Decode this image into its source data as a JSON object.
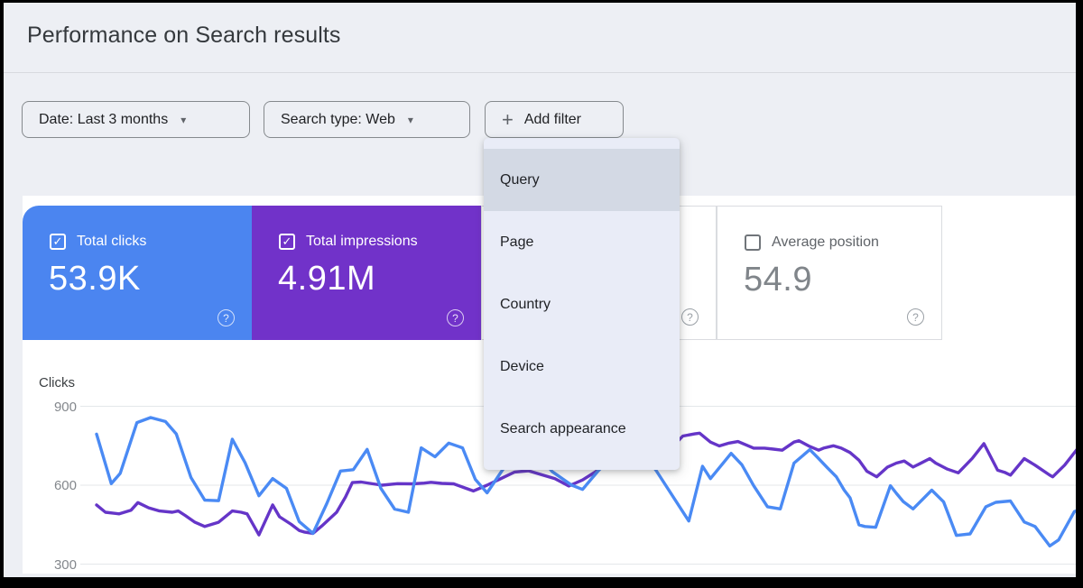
{
  "header": {
    "title": "Performance on Search results"
  },
  "filters": {
    "date_label": "Date: Last 3 months",
    "search_type_label": "Search type: Web",
    "add_filter_label": "Add filter"
  },
  "filter_menu": {
    "items": [
      {
        "label": "Query",
        "selected": true
      },
      {
        "label": "Page",
        "selected": false
      },
      {
        "label": "Country",
        "selected": false
      },
      {
        "label": "Device",
        "selected": false
      },
      {
        "label": "Search appearance",
        "selected": false
      }
    ]
  },
  "icons": {
    "help": "?",
    "check": "✓",
    "chevron": "▾",
    "plus": "+"
  },
  "metric_cards": [
    {
      "label": "Total clicks",
      "value": "53.9K",
      "checked": true,
      "color": "#4b85f0"
    },
    {
      "label": "Total impressions",
      "value": "4.91M",
      "checked": true,
      "color": "#7132c9"
    },
    {
      "label": "",
      "value": "",
      "checked": false,
      "only_help_icon_visible": true
    },
    {
      "label": "Average position",
      "value": "54.9",
      "checked": false,
      "color": "#ffffff"
    }
  ],
  "chart_data": {
    "type": "line",
    "title": "",
    "xlabel": "",
    "ylabel": "Clicks",
    "x_axis": {
      "unit": "time, daily over last 3 months (date tick labels cropped out of view)",
      "t_range": [
        0,
        100
      ]
    },
    "y_axis": {
      "label": "Clicks",
      "ticks": [
        300,
        600,
        900
      ],
      "ylim": [
        300,
        900
      ],
      "grid": true
    },
    "legend_position": "none (metric cards act as legend)",
    "series": [
      {
        "name": "Total clicks",
        "color": "#4a8af4",
        "points": [
          [
            0,
            794
          ],
          [
            1.5,
            606
          ],
          [
            2.4,
            645
          ],
          [
            4.1,
            838
          ],
          [
            5.5,
            857
          ],
          [
            7,
            842
          ],
          [
            8.1,
            795
          ],
          [
            9.6,
            629
          ],
          [
            11,
            543
          ],
          [
            12.4,
            541
          ],
          [
            13.8,
            775
          ],
          [
            15.1,
            685
          ],
          [
            16.5,
            560
          ],
          [
            17.9,
            625
          ],
          [
            19.3,
            588
          ],
          [
            20.6,
            462
          ],
          [
            22,
            417
          ],
          [
            23.4,
            530
          ],
          [
            24.8,
            654
          ],
          [
            26.1,
            659
          ],
          [
            27.5,
            736
          ],
          [
            28.9,
            588
          ],
          [
            30.3,
            509
          ],
          [
            31.7,
            497
          ],
          [
            33,
            742
          ],
          [
            34.4,
            708
          ],
          [
            35.8,
            760
          ],
          [
            37.2,
            742
          ],
          [
            38.5,
            622
          ],
          [
            39.7,
            571
          ],
          [
            41.3,
            660
          ],
          [
            43.1,
            722
          ],
          [
            45,
            712
          ],
          [
            46.3,
            652
          ],
          [
            48.3,
            600
          ],
          [
            49.4,
            584
          ],
          [
            51,
            655
          ],
          [
            53,
            730
          ],
          [
            55,
            748
          ],
          [
            56.9,
            655
          ],
          [
            60.2,
            464
          ],
          [
            61.6,
            672
          ],
          [
            62.4,
            625
          ],
          [
            64.5,
            721
          ],
          [
            65.6,
            678
          ],
          [
            66.8,
            598
          ],
          [
            68.2,
            518
          ],
          [
            69.5,
            510
          ],
          [
            70.9,
            684
          ],
          [
            72.5,
            735
          ],
          [
            73.4,
            701
          ],
          [
            74.3,
            666
          ],
          [
            75.2,
            632
          ],
          [
            76,
            581
          ],
          [
            76.6,
            552
          ],
          [
            77.5,
            449
          ],
          [
            78.1,
            443
          ],
          [
            79.2,
            440
          ],
          [
            80.7,
            598
          ],
          [
            81.3,
            569
          ],
          [
            82,
            538
          ],
          [
            83,
            510
          ],
          [
            84.9,
            581
          ],
          [
            86.1,
            537
          ],
          [
            87.4,
            409
          ],
          [
            88.8,
            415
          ],
          [
            90.4,
            518
          ],
          [
            91.4,
            535
          ],
          [
            92.9,
            540
          ],
          [
            94.3,
            460
          ],
          [
            95.4,
            443
          ],
          [
            96.9,
            369
          ],
          [
            97.8,
            392
          ],
          [
            99.4,
            500
          ],
          [
            100,
            508
          ]
        ]
      },
      {
        "name": "Total impressions",
        "color": "#6535c8",
        "value_note": "impressions curve is drawn against a hidden secondary scale; point values below are its plotted position expressed in the visible Clicks-axis units",
        "points": [
          [
            0,
            525
          ],
          [
            0.9,
            497
          ],
          [
            2.3,
            491
          ],
          [
            3.5,
            505
          ],
          [
            4.2,
            534
          ],
          [
            5.3,
            514
          ],
          [
            6.4,
            502
          ],
          [
            7.7,
            497
          ],
          [
            8.3,
            502
          ],
          [
            9,
            485
          ],
          [
            10,
            459
          ],
          [
            11,
            443
          ],
          [
            12.4,
            459
          ],
          [
            13.8,
            502
          ],
          [
            14.7,
            497
          ],
          [
            15.3,
            491
          ],
          [
            16.5,
            411
          ],
          [
            17.9,
            525
          ],
          [
            18.6,
            480
          ],
          [
            19.8,
            451
          ],
          [
            20.6,
            428
          ],
          [
            21.1,
            422
          ],
          [
            22,
            417
          ],
          [
            22.9,
            445
          ],
          [
            24.4,
            497
          ],
          [
            25.3,
            555
          ],
          [
            26,
            610
          ],
          [
            26.9,
            612
          ],
          [
            29,
            600
          ],
          [
            30.6,
            606
          ],
          [
            32.1,
            605
          ],
          [
            33.3,
            608
          ],
          [
            34,
            611
          ],
          [
            35.1,
            607
          ],
          [
            36.3,
            605
          ],
          [
            37.4,
            590
          ],
          [
            38.3,
            578
          ],
          [
            39.7,
            600
          ],
          [
            41.1,
            625
          ],
          [
            42.5,
            650
          ],
          [
            43.9,
            655
          ],
          [
            45.2,
            640
          ],
          [
            46.6,
            625
          ],
          [
            48,
            597
          ],
          [
            49.4,
            620
          ],
          [
            50.6,
            648
          ],
          [
            51.8,
            680
          ],
          [
            53.5,
            715
          ],
          [
            55.3,
            745
          ],
          [
            57.2,
            762
          ],
          [
            59,
            764
          ],
          [
            59.6,
            787
          ],
          [
            60.8,
            795
          ],
          [
            61.3,
            798
          ],
          [
            62.4,
            764
          ],
          [
            63.3,
            749
          ],
          [
            64.3,
            760
          ],
          [
            65.2,
            766
          ],
          [
            66.1,
            752
          ],
          [
            66.8,
            741
          ],
          [
            67.9,
            741
          ],
          [
            68.8,
            737
          ],
          [
            69.7,
            733
          ],
          [
            70.9,
            764
          ],
          [
            71.4,
            769
          ],
          [
            72.5,
            747
          ],
          [
            73.4,
            733
          ],
          [
            73.9,
            741
          ],
          [
            74.9,
            750
          ],
          [
            75.7,
            741
          ],
          [
            76.6,
            724
          ],
          [
            77.5,
            695
          ],
          [
            78.3,
            653
          ],
          [
            79.3,
            632
          ],
          [
            80.4,
            669
          ],
          [
            81.3,
            684
          ],
          [
            82.1,
            692
          ],
          [
            83,
            669
          ],
          [
            83.6,
            680
          ],
          [
            84.7,
            701
          ],
          [
            85.3,
            684
          ],
          [
            86.5,
            661
          ],
          [
            87.6,
            647
          ],
          [
            89,
            701
          ],
          [
            90.2,
            758
          ],
          [
            91.6,
            657
          ],
          [
            92.3,
            649
          ],
          [
            92.9,
            638
          ],
          [
            94.3,
            701
          ],
          [
            95.4,
            676
          ],
          [
            96.9,
            638
          ],
          [
            97.2,
            632
          ],
          [
            98.4,
            676
          ],
          [
            100,
            752
          ]
        ]
      }
    ]
  }
}
